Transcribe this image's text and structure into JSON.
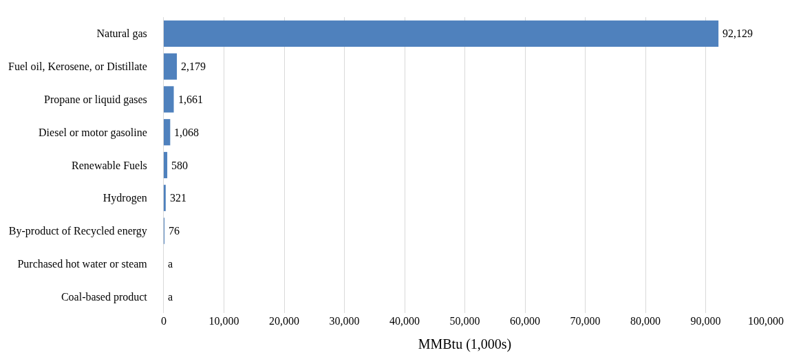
{
  "chart_data": {
    "type": "bar",
    "orientation": "horizontal",
    "xlabel": "MMBtu (1,000s)",
    "categories": [
      "Natural gas",
      "Fuel oil, Kerosene, or Distillate",
      "Propane or liquid gases",
      "Diesel or motor gasoline",
      "Renewable Fuels",
      "Hydrogen",
      "By-product of Recycled energy",
      "Purchased hot water or steam",
      "Coal-based product"
    ],
    "values": [
      92129,
      2179,
      1661,
      1068,
      580,
      321,
      76,
      null,
      null
    ],
    "value_labels": [
      "92,129",
      "2,179",
      "1,661",
      "1,068",
      "580",
      "321",
      "76",
      "a",
      "a"
    ],
    "color": "#4f81bd",
    "xlim": [
      0,
      100000
    ],
    "xticks": [
      0,
      {
        "value": 10000,
        "label": "10,000"
      },
      {
        "value": 20000,
        "label": "20,000"
      },
      {
        "value": 30000,
        "label": "30,000"
      },
      {
        "value": 40000,
        "label": "40,000"
      },
      {
        "value": 50000,
        "label": "50,000"
      },
      {
        "value": 60000,
        "label": "60,000"
      },
      {
        "value": 70000,
        "label": "70,000"
      },
      {
        "value": 80000,
        "label": "80,000"
      },
      {
        "value": 90000,
        "label": "90,000"
      },
      {
        "value": 100000,
        "label": "100,000"
      }
    ],
    "grid": "x"
  }
}
